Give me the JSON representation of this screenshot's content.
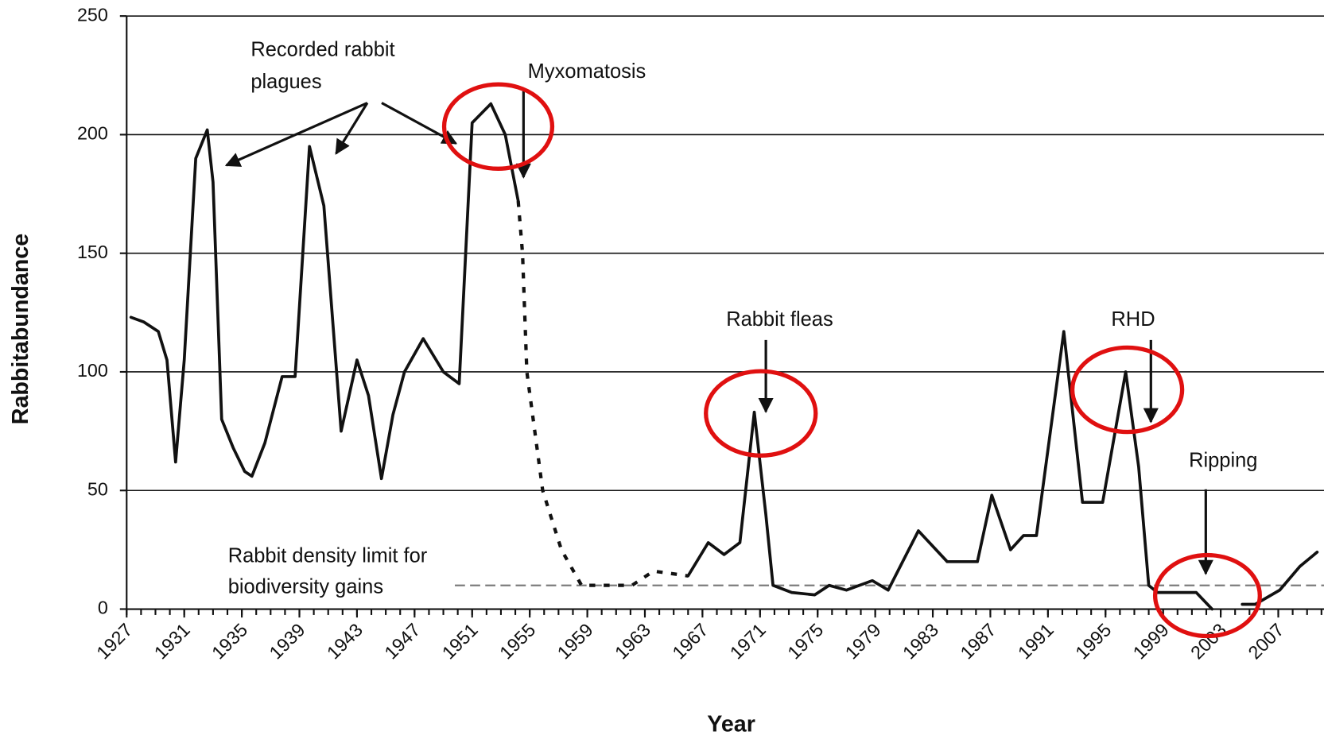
{
  "chart_data": {
    "type": "line",
    "xlabel": "Year",
    "ylabel": "Rabbitabundance",
    "xlim": [
      1927,
      2010
    ],
    "ylim": [
      0,
      250
    ],
    "xticks": [
      1927,
      1931,
      1935,
      1939,
      1943,
      1947,
      1951,
      1955,
      1959,
      1963,
      1967,
      1971,
      1975,
      1979,
      1983,
      1987,
      1991,
      1995,
      1999,
      2003,
      2007
    ],
    "minor_xtick_step": 1,
    "yticks": [
      0,
      50,
      100,
      150,
      200,
      250
    ],
    "grid": true,
    "color": "#111111",
    "series": [
      {
        "style": "solid",
        "x": [
          1927.3,
          1928.2,
          1929.2,
          1929.8,
          1930.4,
          1931.0,
          1931.8,
          1932.6,
          1933.0,
          1933.6,
          1934.4,
          1935.2,
          1935.7,
          1936.6,
          1937.8,
          1938.7,
          1939.7,
          1940.7,
          1941.9,
          1943.0,
          1943.8,
          1944.7,
          1945.5,
          1946.3,
          1947.6,
          1949.0,
          1950.1,
          1951.0,
          1952.3,
          1953.3,
          1954.2,
          1954.3,
          1966.0,
          1967.4,
          1968.5,
          1969.6,
          1970.6,
          1971.4,
          1971.9,
          1973.2,
          1974.8,
          1975.8,
          1977.0,
          1978.8,
          1979.9,
          1982.0,
          1984.0,
          1986.1,
          1987.1,
          1988.4,
          1989.3,
          1990.2,
          1992.1,
          1993.4,
          1994.8,
          1996.4,
          1997.3,
          1998.0,
          1998.6,
          2001.3,
          2002.4,
          2003.5,
          2004.5,
          2005.4,
          2007.1,
          2008.5,
          2009.7
        ],
        "values": [
          123,
          121,
          117,
          105,
          62,
          105,
          190,
          202,
          180,
          80,
          68,
          58,
          56,
          70,
          98,
          98,
          195,
          170,
          75,
          105,
          90,
          55,
          82,
          100,
          114,
          100,
          95,
          205,
          213,
          200,
          172,
          null,
          14,
          28,
          23,
          28,
          83,
          40,
          10,
          7,
          6,
          10,
          8,
          12,
          8,
          33,
          20,
          20,
          48,
          25,
          31,
          31,
          117,
          45,
          45,
          100,
          60,
          10,
          7,
          7,
          0,
          null,
          2,
          2,
          8,
          18,
          24
        ]
      },
      {
        "style": "dotted",
        "x": [
          1954.2,
          1954.5,
          1954.8,
          1955.9,
          1957.2,
          1958.6,
          1960.5,
          1962.1,
          1963.6,
          1966.0
        ],
        "values": [
          172,
          150,
          100,
          50,
          25,
          10,
          10,
          10,
          16,
          14
        ]
      }
    ],
    "threshold": {
      "value": 10,
      "x_start": 1949.8,
      "label": [
        "Rabbit density limit for",
        "biodiversity gains"
      ]
    },
    "annotations": [
      {
        "text": [
          "Recorded rabbit",
          "plagues"
        ]
      },
      {
        "text": [
          "Myxomatosis"
        ]
      },
      {
        "text": [
          "Rabbit fleas"
        ]
      },
      {
        "text": [
          "RHD"
        ]
      },
      {
        "text": [
          "Ripping"
        ]
      }
    ]
  }
}
